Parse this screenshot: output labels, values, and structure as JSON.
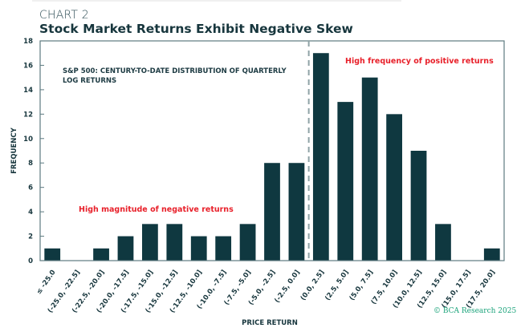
{
  "header": {
    "kicker": "CHART 2",
    "title": "Stock Market Returns Exhibit Negative Skew"
  },
  "chart_data": {
    "type": "bar",
    "subtitle": "S&P 500: CENTURY-TO-DATE DISTRIBUTION OF QUARTERLY LOG RETURNS",
    "subtitle_lines": [
      "S&P 500: CENTURY-TO-DATE DISTRIBUTION OF QUARTERLY",
      "LOG RETURNS"
    ],
    "xlabel": "PRICE RETURN",
    "ylabel": "FREQUENCY",
    "ylim": [
      0,
      18
    ],
    "yticks": [
      0,
      2,
      4,
      6,
      8,
      10,
      12,
      14,
      16,
      18
    ],
    "categories": [
      "≤ -25.0",
      "(-25.0, -22.5]",
      "(-22.5, -20.0]",
      "(-20.0, -17.5]",
      "(-17.5, -15.0]",
      "(-15.0, -12.5]",
      "(-12.5, -10.0]",
      "(-10.0, -7.5]",
      "(-7.5, -5.0]",
      "(-5.0, -2.5]",
      "(-2.5, 0.0]",
      "(0.0, 2.5]",
      "(2.5, 5.0]",
      "(5.0, 7.5]",
      "(7.5, 10.0]",
      "(10.0, 12.5]",
      "(12.5, 15.0]",
      "(15.0, 17.5]",
      "(17.5, 20.0]"
    ],
    "values": [
      1,
      0,
      1,
      2,
      3,
      3,
      2,
      2,
      3,
      8,
      8,
      17,
      13,
      15,
      12,
      9,
      3,
      0,
      1
    ],
    "reference_line": {
      "x": 0.0,
      "style": "dashed"
    },
    "annotations": [
      {
        "text": "High magnitude of negative returns",
        "color": "#e8202a"
      },
      {
        "text": "High frequency of positive returns",
        "color": "#e8202a"
      }
    ],
    "bar_color": "#0f3840",
    "grid": false
  },
  "footer": {
    "copyright": "© BCA Research 2025"
  }
}
